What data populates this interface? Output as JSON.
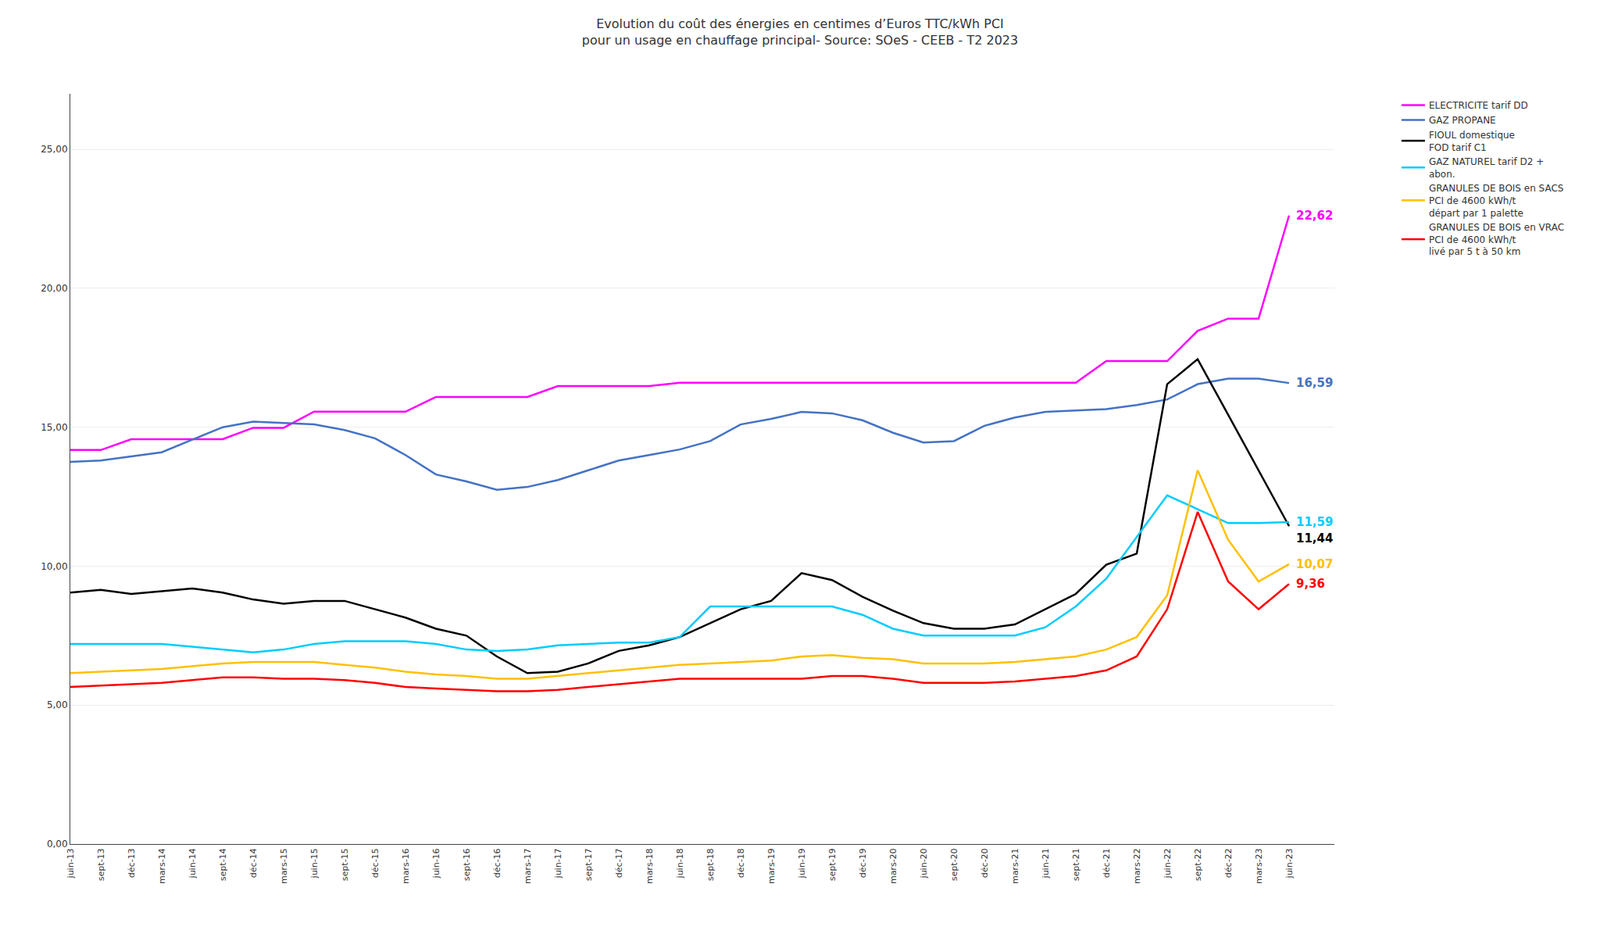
{
  "chart_data": {
    "type": "line",
    "title": "Evolution du coût des énergies en centimes d’Euros TTC/kWh PCI",
    "subtitle": "pour un usage en chauffage principal- Source: SOeS - CEEB - T2 2023",
    "categories": [
      "juin-13",
      "sept-13",
      "déc-13",
      "mars-14",
      "juin-14",
      "sept-14",
      "déc-14",
      "mars-15",
      "juin-15",
      "sept-15",
      "déc-15",
      "mars-16",
      "juin-16",
      "sept-16",
      "déc-16",
      "mars-17",
      "juin-17",
      "sept-17",
      "déc-17",
      "mars-18",
      "juin-18",
      "sept-18",
      "déc-18",
      "mars-19",
      "juin-19",
      "sept-19",
      "déc-19",
      "mars-20",
      "juin-20",
      "sept-20",
      "déc-20",
      "mars-21",
      "juin-21",
      "sept-21",
      "déc-21",
      "mars-22",
      "juin-22",
      "sept-22",
      "déc-22",
      "mars-23",
      "juin-23"
    ],
    "series": [
      {
        "name": "ELECTRICITE tarif DD",
        "color": "#ff00ff",
        "values": [
          14.18,
          14.18,
          14.57,
          14.57,
          14.57,
          14.57,
          14.98,
          14.98,
          15.56,
          15.56,
          15.56,
          15.56,
          16.09,
          16.09,
          16.09,
          16.09,
          16.48,
          16.48,
          16.48,
          16.48,
          16.6,
          16.6,
          16.6,
          16.6,
          16.6,
          16.6,
          16.6,
          16.6,
          16.6,
          16.6,
          16.6,
          16.6,
          16.6,
          16.6,
          17.38,
          17.38,
          17.38,
          18.47,
          18.91,
          18.91,
          22.62
        ]
      },
      {
        "name": "GAZ PROPANE",
        "color": "#4472c4",
        "values": [
          13.75,
          13.8,
          13.95,
          14.1,
          14.55,
          15.0,
          15.2,
          15.15,
          15.1,
          14.9,
          14.6,
          14.0,
          13.3,
          13.05,
          12.75,
          12.85,
          13.1,
          13.45,
          13.8,
          14.0,
          14.2,
          14.5,
          15.1,
          15.3,
          15.55,
          15.5,
          15.25,
          14.8,
          14.45,
          14.5,
          15.05,
          15.35,
          15.55,
          15.6,
          15.65,
          15.8,
          16.0,
          16.55,
          16.75,
          16.75,
          16.59
        ]
      },
      {
        "name": "FIOUL domestique\nFOD tarif C1",
        "color": "#000000",
        "values": [
          9.05,
          9.15,
          9.0,
          9.1,
          9.2,
          9.05,
          8.8,
          8.65,
          8.75,
          8.75,
          8.45,
          8.15,
          7.75,
          7.5,
          6.75,
          6.15,
          6.2,
          6.5,
          6.95,
          7.15,
          7.45,
          7.95,
          8.45,
          8.75,
          9.75,
          9.5,
          8.9,
          8.4,
          7.95,
          7.75,
          7.75,
          7.9,
          8.45,
          9.0,
          10.05,
          10.45,
          16.55,
          17.45,
          15.45,
          13.45,
          11.44
        ]
      },
      {
        "name": "GAZ NATUREL tarif D2 +\nabon.",
        "color": "#00ccff",
        "values": [
          7.2,
          7.2,
          7.2,
          7.2,
          7.1,
          7.0,
          6.9,
          7.0,
          7.2,
          7.3,
          7.3,
          7.3,
          7.2,
          7.0,
          6.95,
          7.0,
          7.15,
          7.2,
          7.25,
          7.25,
          7.45,
          8.55,
          8.55,
          8.55,
          8.55,
          8.55,
          8.25,
          7.75,
          7.5,
          7.5,
          7.5,
          7.5,
          7.8,
          8.55,
          9.55,
          11.05,
          12.55,
          12.05,
          11.55,
          11.55,
          11.59
        ]
      },
      {
        "name": "GRANULES DE BOIS en SACS\nPCI de 4600 kWh/t\ndépart par 1 palette",
        "color": "#ffc000",
        "values": [
          6.15,
          6.2,
          6.25,
          6.3,
          6.4,
          6.5,
          6.55,
          6.55,
          6.55,
          6.45,
          6.35,
          6.2,
          6.1,
          6.05,
          5.95,
          5.95,
          6.05,
          6.15,
          6.25,
          6.35,
          6.45,
          6.5,
          6.55,
          6.6,
          6.75,
          6.8,
          6.7,
          6.65,
          6.5,
          6.5,
          6.5,
          6.55,
          6.65,
          6.75,
          7.0,
          7.45,
          8.95,
          13.45,
          10.95,
          9.45,
          10.07
        ]
      },
      {
        "name": "GRANULES DE BOIS en VRAC\nPCI de 4600 kWh/t\nlivé par 5 t à 50 km",
        "color": "#ff0000",
        "values": [
          5.65,
          5.7,
          5.75,
          5.8,
          5.9,
          6.0,
          6.0,
          5.95,
          5.95,
          5.9,
          5.8,
          5.65,
          5.6,
          5.55,
          5.5,
          5.5,
          5.55,
          5.65,
          5.75,
          5.85,
          5.95,
          5.95,
          5.95,
          5.95,
          5.95,
          6.05,
          6.05,
          5.95,
          5.8,
          5.8,
          5.8,
          5.85,
          5.95,
          6.05,
          6.25,
          6.75,
          8.45,
          11.95,
          9.45,
          8.45,
          9.36
        ]
      }
    ],
    "annotations": [
      {
        "text": "22,62",
        "x": "juin-23",
        "y": 22.62,
        "color": "#ff00ff"
      },
      {
        "text": "16,59",
        "x": "juin-23",
        "y": 16.59,
        "color": "#4472c4"
      },
      {
        "text": "11,44",
        "x": "juin-23",
        "y": 11.44,
        "color": "#000000"
      },
      {
        "text": "11,59",
        "x": "juin-23",
        "y": 11.59,
        "color": "#00ccff"
      },
      {
        "text": "10,07",
        "x": "juin-23",
        "y": 10.07,
        "color": "#ffc000"
      },
      {
        "text": "9,36",
        "x": "juin-23",
        "y": 9.36,
        "color": "#ff0000"
      }
    ],
    "ylim": [
      0,
      27
    ],
    "yticks": [
      {
        "value": 0,
        "label": "0,00"
      },
      {
        "value": 5,
        "label": "5,00"
      },
      {
        "value": 10,
        "label": "10,00"
      },
      {
        "value": 15,
        "label": "15,00"
      },
      {
        "value": 20,
        "label": "20,00"
      },
      {
        "value": 25,
        "label": "25,00"
      }
    ],
    "grid": true,
    "legend": "right"
  }
}
